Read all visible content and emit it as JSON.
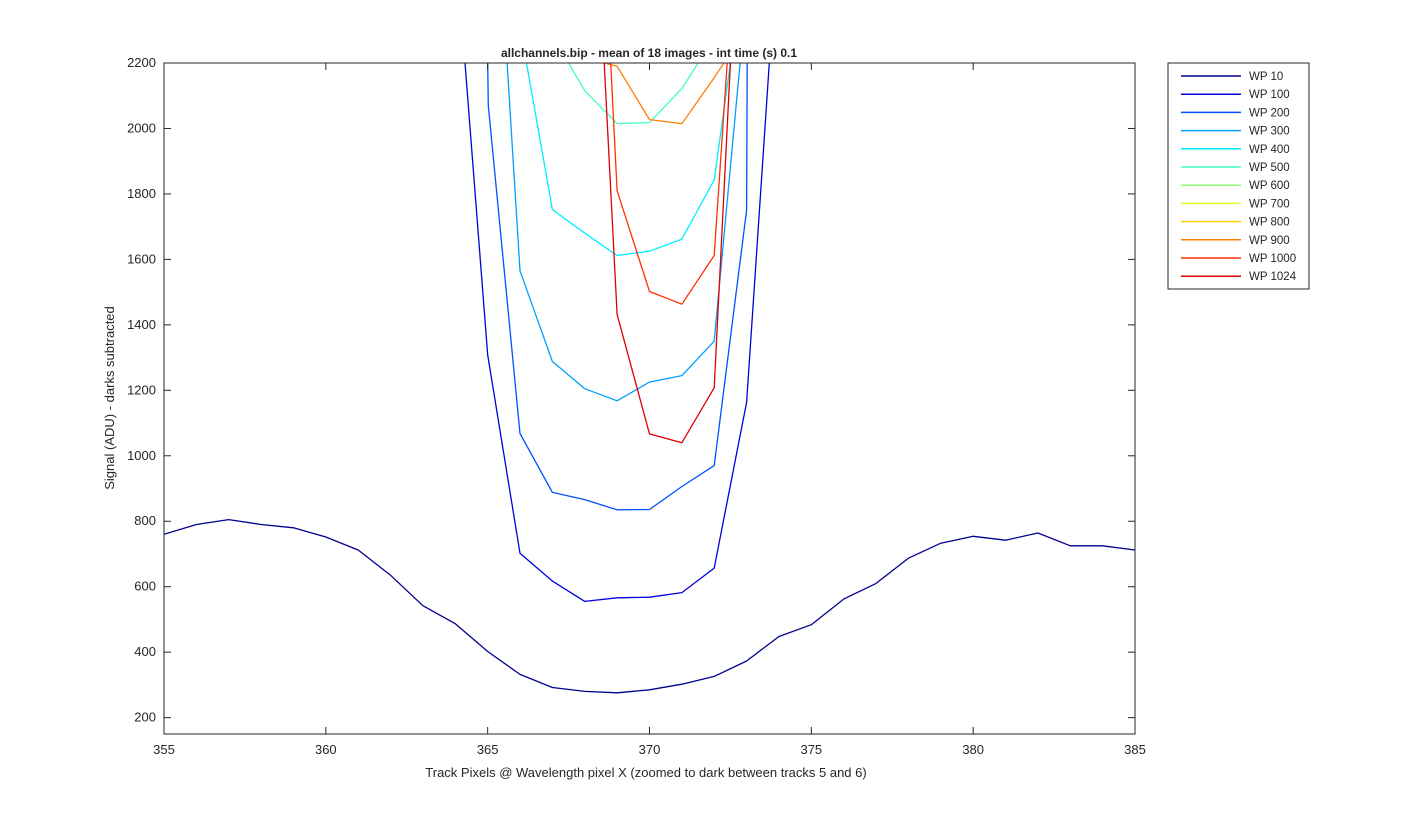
{
  "chart_data": {
    "type": "line",
    "title": "allchannels.bip - mean of 18 images - int time (s) 0.1",
    "xlabel": "Track Pixels @ Wavelength pixel X  (zoomed to dark between tracks 5 and 6)",
    "ylabel": "Signal (ADU) - darks subtracted",
    "xlim": [
      355,
      385
    ],
    "ylim": [
      150,
      2200
    ],
    "xticks": [
      355,
      360,
      365,
      370,
      375,
      380,
      385
    ],
    "yticks": [
      200,
      400,
      600,
      800,
      1000,
      1200,
      1400,
      1600,
      1800,
      2000,
      2200
    ],
    "grid": false,
    "legend_position": "outside top-right",
    "series": [
      {
        "name": "WP 10",
        "color": "#00008F",
        "x": [
          355,
          356,
          357,
          358,
          359,
          360,
          361,
          362,
          363,
          364,
          365,
          366,
          367,
          368,
          369,
          370,
          371,
          372,
          373,
          374,
          375,
          376,
          377,
          378,
          379,
          380,
          381,
          382,
          383,
          384,
          385
        ],
        "y": [
          760,
          790,
          805,
          790,
          780,
          752,
          712,
          635,
          542,
          487,
          402,
          332,
          292,
          280,
          276,
          285,
          302,
          326,
          373,
          448,
          484,
          562,
          610,
          687,
          733,
          754,
          742,
          764,
          725,
          725,
          712
        ]
      },
      {
        "name": "WP 100",
        "color": "#0000DF",
        "x": [
          364.3,
          365,
          366,
          367,
          368,
          369,
          370,
          371,
          372,
          373,
          373.7
        ],
        "y": [
          2200,
          1308,
          702,
          617,
          555,
          566,
          568,
          582,
          657,
          1163,
          2200
        ]
      },
      {
        "name": "WP 200",
        "color": "#0050FF",
        "x": [
          365,
          365.02,
          366,
          367,
          368,
          369,
          370,
          371,
          372,
          373,
          373.02
        ],
        "y": [
          2200,
          2070,
          1068,
          888,
          866,
          835,
          836,
          906,
          970,
          1750,
          2200
        ]
      },
      {
        "name": "WP 300",
        "color": "#009FFF",
        "x": [
          365.6,
          366,
          367,
          368,
          369,
          370,
          371,
          372,
          372.8
        ],
        "y": [
          2200,
          1565,
          1288,
          1205,
          1168,
          1225,
          1245,
          1350,
          2200
        ]
      },
      {
        "name": "WP 400",
        "color": "#00EFFF",
        "x": [
          366.2,
          367,
          368,
          369,
          370,
          371,
          372,
          372.5
        ],
        "y": [
          2200,
          1752,
          1680,
          1612,
          1625,
          1662,
          1843,
          2200
        ]
      },
      {
        "name": "WP 500",
        "color": "#40FFBF",
        "x": [
          367.5,
          368,
          369,
          370,
          371,
          371.5
        ],
        "y": [
          2200,
          2115,
          2015,
          2018,
          2122,
          2200
        ]
      },
      {
        "name": "WP 600",
        "color": "#8FFF70",
        "x": [],
        "y": []
      },
      {
        "name": "WP 700",
        "color": "#DFFF20",
        "x": [],
        "y": []
      },
      {
        "name": "WP 800",
        "color": "#FFCF00",
        "x": [],
        "y": []
      },
      {
        "name": "WP 900",
        "color": "#FF7F00",
        "x": [
          368.6,
          369,
          370,
          371,
          372,
          372.3
        ],
        "y": [
          2200,
          2190,
          2027,
          2015,
          2155,
          2200
        ]
      },
      {
        "name": "WP 1000",
        "color": "#FF3000",
        "x": [
          368.8,
          369,
          370,
          371,
          372,
          372.4
        ],
        "y": [
          2200,
          1810,
          1502,
          1463,
          1612,
          2200
        ]
      },
      {
        "name": "WP 1024",
        "color": "#DF0000",
        "x": [
          368.6,
          369,
          370,
          371,
          372,
          372.5
        ],
        "y": [
          2200,
          1432,
          1067,
          1040,
          1208,
          2200
        ]
      }
    ]
  }
}
